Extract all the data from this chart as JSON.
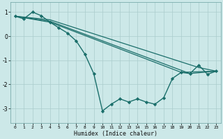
{
  "xlabel": "Humidex (Indice chaleur)",
  "bg_color": "#cce8e8",
  "grid_color": "#aacccc",
  "line_color": "#1a6e6a",
  "xlim": [
    -0.5,
    23.5
  ],
  "ylim": [
    -3.6,
    1.4
  ],
  "yticks": [
    -3,
    -2,
    -1,
    0,
    1
  ],
  "xticks": [
    0,
    1,
    2,
    3,
    4,
    5,
    6,
    7,
    8,
    9,
    10,
    11,
    12,
    13,
    14,
    15,
    16,
    17,
    18,
    19,
    20,
    21,
    22,
    23
  ],
  "lines": [
    {
      "x": [
        0,
        1,
        2,
        3,
        4,
        5,
        6,
        7,
        8,
        9,
        10,
        11,
        12,
        13,
        14,
        15,
        16,
        17,
        18,
        19,
        20,
        21,
        22,
        23
      ],
      "y": [
        0.83,
        0.72,
        1.0,
        0.85,
        0.58,
        0.35,
        0.13,
        -0.2,
        -0.75,
        -1.55,
        -3.1,
        -2.82,
        -2.6,
        -2.73,
        -2.6,
        -2.73,
        -2.82,
        -2.55,
        -1.75,
        -1.5,
        -1.55,
        -1.2,
        -1.58,
        -1.45
      ],
      "marker": "D",
      "markersize": 2.2,
      "linewidth": 1.0,
      "has_marker": true
    },
    {
      "x": [
        0,
        4,
        19,
        23
      ],
      "y": [
        0.83,
        0.58,
        -1.5,
        -1.45
      ],
      "marker": null,
      "markersize": 0,
      "linewidth": 0.9,
      "has_marker": false
    },
    {
      "x": [
        0,
        4,
        20,
        23
      ],
      "y": [
        0.83,
        0.62,
        -1.55,
        -1.45
      ],
      "marker": null,
      "markersize": 0,
      "linewidth": 0.9,
      "has_marker": false
    },
    {
      "x": [
        0,
        4,
        21,
        23
      ],
      "y": [
        0.83,
        0.68,
        -1.3,
        -1.45
      ],
      "marker": null,
      "markersize": 0,
      "linewidth": 0.9,
      "has_marker": false
    }
  ]
}
